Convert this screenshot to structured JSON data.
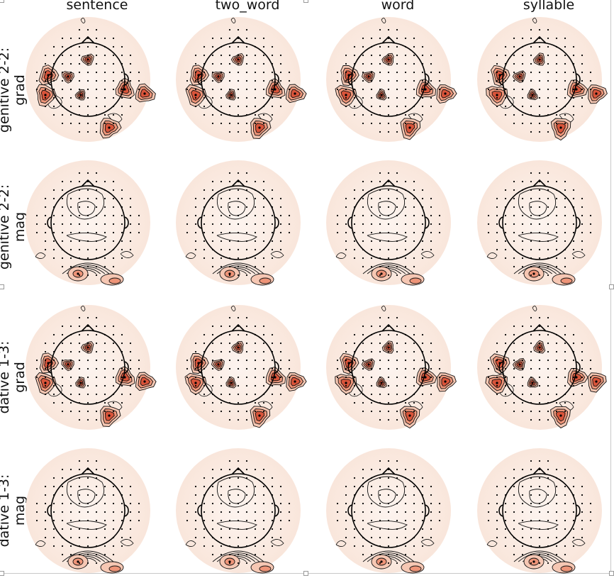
{
  "columns": [
    "sentence",
    "two_word",
    "word",
    "syllable"
  ],
  "rows": [
    {
      "line1": "genitive 2-2:",
      "line2": "grad",
      "sensor": "grad"
    },
    {
      "line1": "genitive 2-2:",
      "line2": "mag",
      "sensor": "mag"
    },
    {
      "line1": "dative 1-3:",
      "line2": "grad",
      "sensor": "grad"
    },
    {
      "line1": "dative 1-3:",
      "line2": "mag",
      "sensor": "mag"
    }
  ],
  "colors": {
    "background_disk": "#fbeee6",
    "contour": "#111111",
    "peak_low": "#f6c7b3",
    "peak_mid": "#ee9478",
    "peak_high": "#d9543a"
  }
}
